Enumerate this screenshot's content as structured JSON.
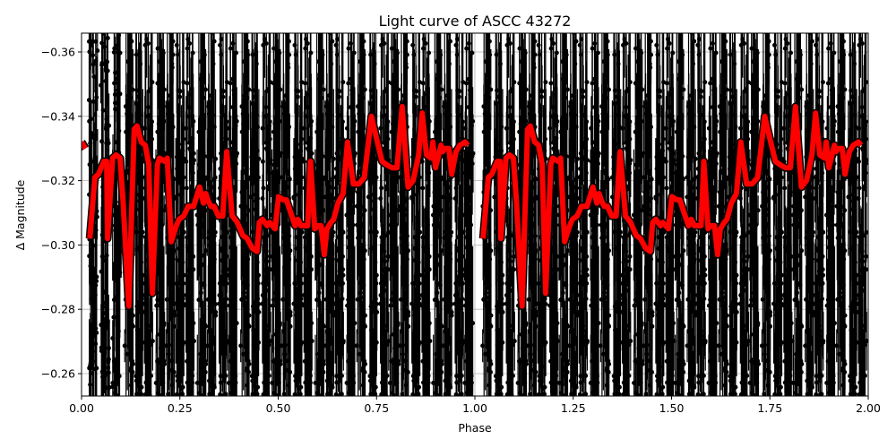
{
  "chart_data": {
    "type": "scatter",
    "title": "Light curve of ASCC 43272",
    "xlabel": "Phase",
    "ylabel": "Δ Magnitude",
    "xlim": [
      0.0,
      2.0
    ],
    "ylim": [
      -0.255,
      -0.366
    ],
    "y_inverted": true,
    "grid": true,
    "legend": null,
    "xticks": [
      "0.00",
      "0.25",
      "0.50",
      "0.75",
      "1.00",
      "1.25",
      "1.50",
      "1.75",
      "2.00"
    ],
    "xtick_values": [
      0.0,
      0.25,
      0.5,
      0.75,
      1.0,
      1.25,
      1.5,
      1.75,
      2.0
    ],
    "yticks": [
      "−0.36",
      "−0.34",
      "−0.32",
      "−0.30",
      "−0.28",
      "−0.26"
    ],
    "ytick_values": [
      -0.36,
      -0.34,
      -0.32,
      -0.3,
      -0.28,
      -0.26
    ],
    "series": [
      {
        "name": "observations",
        "style": "black points with error bars",
        "color": "#000000",
        "note": "Dense photometric points clustered in narrow vertical strips spanning roughly -0.255 to -0.366 across the whole phase range (repeated for phase 1-2)"
      },
      {
        "name": "binned curve",
        "style": "thick red line with black outline",
        "color": "#ff0000",
        "period_repeat": true,
        "phase": [
          0.021,
          0.034,
          0.043,
          0.057,
          0.064,
          0.066,
          0.079,
          0.088,
          0.098,
          0.106,
          0.12,
          0.134,
          0.141,
          0.152,
          0.162,
          0.171,
          0.18,
          0.193,
          0.198,
          0.212,
          0.218,
          0.228,
          0.241,
          0.248,
          0.26,
          0.271,
          0.285,
          0.3,
          0.31,
          0.316,
          0.321,
          0.329,
          0.337,
          0.348,
          0.359,
          0.369,
          0.383,
          0.39,
          0.396,
          0.41,
          0.421,
          0.434,
          0.446,
          0.452,
          0.46,
          0.472,
          0.478,
          0.492,
          0.501,
          0.514,
          0.521,
          0.532,
          0.543,
          0.55,
          0.558,
          0.575,
          0.582,
          0.593,
          0.601,
          0.609,
          0.617,
          0.624,
          0.634,
          0.641,
          0.652,
          0.665,
          0.676,
          0.691,
          0.705,
          0.719,
          0.737,
          0.75,
          0.764,
          0.775,
          0.789,
          0.802,
          0.815,
          0.83,
          0.843,
          0.852,
          0.857,
          0.866,
          0.877,
          0.889,
          0.893,
          0.9,
          0.914,
          0.918,
          0.923,
          0.934,
          0.941,
          0.952,
          0.962,
          0.975,
          0.982
        ],
        "magnitude": [
          -0.302,
          -0.321,
          -0.322,
          -0.326,
          -0.326,
          -0.302,
          -0.327,
          -0.328,
          -0.327,
          -0.313,
          -0.281,
          -0.336,
          -0.337,
          -0.332,
          -0.331,
          -0.325,
          -0.285,
          -0.325,
          -0.327,
          -0.326,
          -0.327,
          -0.301,
          -0.306,
          -0.308,
          -0.309,
          -0.312,
          -0.312,
          -0.318,
          -0.313,
          -0.316,
          -0.314,
          -0.312,
          -0.312,
          -0.309,
          -0.309,
          -0.329,
          -0.309,
          -0.308,
          -0.307,
          -0.303,
          -0.302,
          -0.299,
          -0.298,
          -0.307,
          -0.308,
          -0.306,
          -0.307,
          -0.305,
          -0.315,
          -0.314,
          -0.314,
          -0.31,
          -0.306,
          -0.308,
          -0.306,
          -0.306,
          -0.326,
          -0.305,
          -0.306,
          -0.306,
          -0.297,
          -0.305,
          -0.307,
          -0.308,
          -0.313,
          -0.316,
          -0.332,
          -0.319,
          -0.319,
          -0.321,
          -0.34,
          -0.333,
          -0.326,
          -0.325,
          -0.324,
          -0.324,
          -0.343,
          -0.318,
          -0.32,
          -0.325,
          -0.328,
          -0.341,
          -0.328,
          -0.327,
          -0.332,
          -0.324,
          -0.331,
          -0.329,
          -0.33,
          -0.33,
          -0.322,
          -0.329,
          -0.331,
          -0.332,
          -0.331
        ]
      }
    ]
  },
  "strips": {
    "seed": 43272,
    "phase_centers": [
      0.03,
      0.06,
      0.09,
      0.12,
      0.145,
      0.17,
      0.2,
      0.225,
      0.25,
      0.275,
      0.305,
      0.33,
      0.36,
      0.385,
      0.415,
      0.44,
      0.47,
      0.495,
      0.52,
      0.55,
      0.575,
      0.605,
      0.63,
      0.655,
      0.685,
      0.71,
      0.74,
      0.77,
      0.795,
      0.82,
      0.85,
      0.875,
      0.905,
      0.93,
      0.96,
      0.985
    ]
  }
}
